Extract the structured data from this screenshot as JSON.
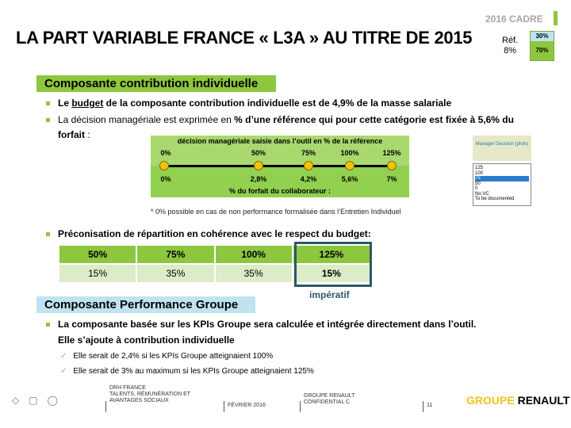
{
  "header": {
    "tag": "2016 CADRE",
    "title": "LA PART VARIABLE FRANCE « L3A » AU TITRE DE 2015",
    "ref_label": "Réf.",
    "ref_value": "8%",
    "ref_top": "30%",
    "ref_bottom": "70%"
  },
  "section1": {
    "title": "Composante contribution individuelle",
    "b1_pre": "Le ",
    "b1_link": "budget",
    "b1_post": " de la composante contribution individuelle est de 4,9% de la masse salariale",
    "b2_a": "La décision managériale est exprimée en ",
    "b2_b": "% d’une référence qui pour cette catégorie est fixée à 5,6% du forfait",
    "b2_c": " :"
  },
  "scale": {
    "top_title": "décision managériale saisie dans l’outil en % de la référence",
    "top_values": [
      "0%",
      "50%",
      "75%",
      "100%",
      "125%"
    ],
    "bottom_values": [
      "0%",
      "2,8%",
      "4,2%",
      "5,6%",
      "7%"
    ],
    "bottom_title": "% du forfait du collaborateur :",
    "footnote": "* 0% possible en cas de non performance formalisée dans l’Entretien Individuel"
  },
  "manager": {
    "title": "Manager Decision (plots)",
    "options": [
      "125",
      "100",
      "75",
      "50",
      "0",
      "No VC",
      "To be documented"
    ],
    "selected": "75"
  },
  "repartition": {
    "title": "Préconisation de répartition en cohérence avec le respect du budget:",
    "headers": [
      "50%",
      "75%",
      "100%",
      "125%"
    ],
    "values": [
      "15%",
      "35%",
      "35%",
      "15%"
    ],
    "note": "impératif"
  },
  "section2": {
    "title": "Composante Performance Groupe",
    "b1": "La composante basée sur les KPIs Groupe sera calculée et intégrée directement dans l’outil.",
    "b1_cont": "Elle s’ajoute à contribution individuelle",
    "c1": "Elle serait de 2,4% si les KPIs Groupe atteignaient  100%",
    "c2": "Elle serait de 3% au maximum  si les KPIs Groupe atteignaient  125%"
  },
  "footer": {
    "dept1": "DRH FRANCE",
    "dept2": "TALENTS, RÉMUNÉRATION ET",
    "dept3": "AVANTAGES SOCIAUX",
    "date": "FÉVRIER 2016",
    "conf1": "GROUPE RENAULT",
    "conf2": "CONFIDENTIAL C",
    "page": "11",
    "logo_a": "GROUPE ",
    "logo_b": "RENAULT"
  }
}
